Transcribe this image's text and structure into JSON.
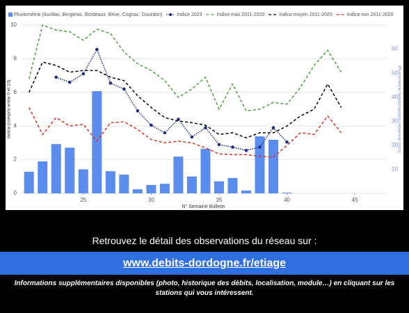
{
  "chart_data": {
    "type": "combo",
    "legend": "top-left",
    "grid": true,
    "x_label": "N° Semaine Bulletin",
    "y_label": "Indice (compris entre 0 et 10)",
    "y2_label": "Pluviométrie hebdomadaire moyenne (mm)",
    "x": [
      21,
      22,
      23,
      24,
      25,
      26,
      27,
      28,
      29,
      30,
      31,
      32,
      33,
      34,
      35,
      36,
      37,
      38,
      39,
      40,
      41,
      42,
      43,
      44
    ],
    "xlim": [
      20.4,
      47.3
    ],
    "xticks": [
      25,
      30,
      35,
      40,
      45
    ],
    "ylim": [
      0,
      10
    ],
    "yticks": [
      0,
      2,
      4,
      6,
      8,
      10
    ],
    "y2lim": [
      0,
      70
    ],
    "y2ticks": [
      10,
      20,
      30,
      40,
      50,
      60
    ],
    "series": [
      {
        "name": "Pluviométrie (Aurillac, Bergerac, Bordeaux, Brive, Cognac, Gourdon)",
        "type": "bar",
        "axis": "y2",
        "color": "#5b8def",
        "values": [
          9,
          13.3,
          20.5,
          19,
          10,
          42.5,
          9.2,
          7.8,
          1.7,
          3.5,
          4,
          15.3,
          7,
          18.5,
          5,
          6.4,
          1.2,
          23.7,
          22.3,
          0.3,
          null,
          null,
          null,
          null
        ]
      },
      {
        "name": "Indice 2023",
        "type": "line",
        "dash": "dotted",
        "marker": true,
        "color": "#1f2d8a",
        "values": [
          null,
          null,
          6.9,
          6.6,
          7.1,
          8.55,
          6.55,
          6.2,
          4.9,
          4.05,
          3.6,
          4.4,
          3.35,
          3.9,
          2.9,
          2.75,
          2.55,
          2.75,
          3.9,
          3.05,
          null,
          null,
          null,
          null
        ]
      },
      {
        "name": "Indice max 2011-2020",
        "type": "line",
        "dash": "dashed",
        "marker": false,
        "color": "#4aa33a",
        "values": [
          6.8,
          10,
          9.7,
          9.6,
          9.1,
          9.75,
          9.5,
          8.4,
          7.7,
          7.3,
          6.7,
          5.7,
          6.2,
          6.9,
          5.0,
          6.5,
          4.9,
          5.0,
          5.4,
          5.3,
          6.3,
          7.6,
          8.5,
          7.2
        ]
      },
      {
        "name": "Indice moyen 2011-2020",
        "type": "line",
        "dash": "dashed",
        "marker": false,
        "color": "#000000",
        "values": [
          6.0,
          7.8,
          7.6,
          7.2,
          7.3,
          7.3,
          6.9,
          6.7,
          5.8,
          5.1,
          4.5,
          4.3,
          4.2,
          4.05,
          3.5,
          3.6,
          3.3,
          3.6,
          3.6,
          4.0,
          4.6,
          5.0,
          6.5,
          5.1
        ]
      },
      {
        "name": "Indice min 2011-2020",
        "type": "line",
        "dash": "dashed",
        "marker": false,
        "color": "#e0301e",
        "values": [
          5.1,
          3.5,
          4.5,
          4.0,
          4.1,
          3.1,
          4.2,
          4.25,
          3.8,
          3.2,
          3.0,
          3.1,
          3.0,
          2.7,
          2.35,
          2.3,
          2.3,
          2.2,
          2.15,
          2.85,
          3.6,
          3.5,
          4.6,
          3.6
        ]
      }
    ]
  },
  "footer": {
    "intro": "Retrouvez le détail des observations du réseau sur :",
    "link": "www.debits-dordogne.fr/etiage",
    "note": "Informations supplémentaires disponibles (photo, historique des débits, localisation, module…) en cliquant sur les stations qui vous intéressent."
  }
}
